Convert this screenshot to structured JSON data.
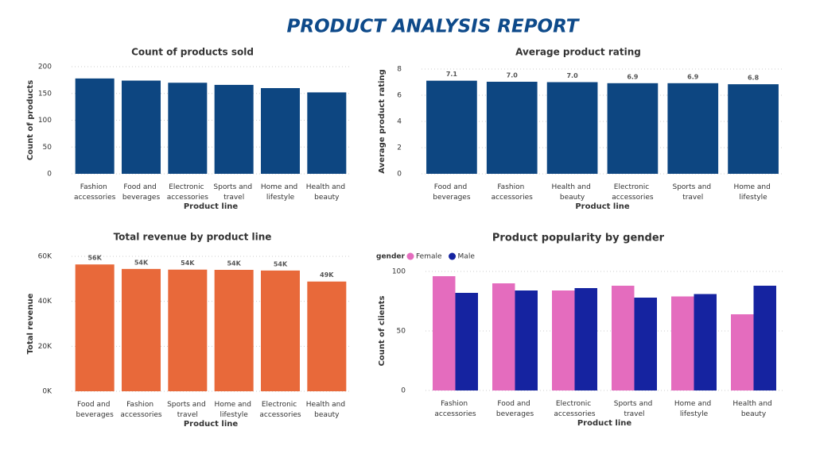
{
  "title": "PRODUCT ANALYSIS REPORT",
  "chart_data": [
    {
      "type": "bar",
      "title": "Count of products sold",
      "x_label": "Product line",
      "y_label": "Count of products",
      "categories": [
        "Fashion accessories",
        "Food and beverages",
        "Electronic accessories",
        "Sports and travel",
        "Home and lifestyle",
        "Health and beauty"
      ],
      "values": [
        178,
        174,
        170,
        166,
        160,
        152
      ],
      "color": "#0d4681",
      "ylim": [
        0,
        200
      ],
      "yticks": [
        0,
        50,
        100,
        150,
        200
      ],
      "grid": true
    },
    {
      "type": "bar",
      "title": "Average product rating",
      "x_label": "Product line",
      "y_label": "Average product rating",
      "categories": [
        "Food and beverages",
        "Fashion accessories",
        "Health and beauty",
        "Electronic accessories",
        "Sports and travel",
        "Home and lifestyle"
      ],
      "values": [
        7.11,
        7.03,
        7.0,
        6.92,
        6.92,
        6.84
      ],
      "value_labels": [
        "7.1",
        "7.0",
        "7.0",
        "6.9",
        "6.9",
        "6.8"
      ],
      "color": "#0d4681",
      "ylim": [
        0,
        8
      ],
      "yticks": [
        0,
        2,
        4,
        6,
        8
      ],
      "grid": true
    },
    {
      "type": "bar",
      "title": "Total revenue by product line",
      "x_label": "Product line",
      "y_label": "Total revenue",
      "categories": [
        "Food and beverages",
        "Fashion accessories",
        "Sports and travel",
        "Home and lifestyle",
        "Electronic accessories",
        "Health and beauty"
      ],
      "values": [
        56400,
        54400,
        54100,
        54000,
        53700,
        48800
      ],
      "value_labels": [
        "56K",
        "54K",
        "54K",
        "54K",
        "54K",
        "49K"
      ],
      "color": "#e8693a",
      "ylim": [
        0,
        60000
      ],
      "yticks": [
        {
          "value": 0,
          "label": "0K"
        },
        {
          "value": 20000,
          "label": "20K"
        },
        {
          "value": 40000,
          "label": "40K"
        },
        {
          "value": 60000,
          "label": "60K"
        }
      ],
      "grid": true
    },
    {
      "type": "grouped_bar",
      "title": "Product popularity by gender",
      "x_label": "Product line",
      "y_label": "Count of clients",
      "legend_title": "gender",
      "categories": [
        "Fashion accessories",
        "Food and beverages",
        "Electronic accessories",
        "Sports and travel",
        "Home and lifestyle",
        "Health and beauty"
      ],
      "series": [
        {
          "name": "Female",
          "color": "#e46cbe",
          "values": [
            96,
            90,
            84,
            88,
            79,
            64
          ]
        },
        {
          "name": "Male",
          "color": "#1523a0",
          "values": [
            82,
            84,
            86,
            78,
            81,
            88
          ]
        }
      ],
      "ylim": [
        0,
        100
      ],
      "yticks": [
        0,
        50,
        100
      ],
      "grid": true,
      "legend": "top-left"
    }
  ]
}
